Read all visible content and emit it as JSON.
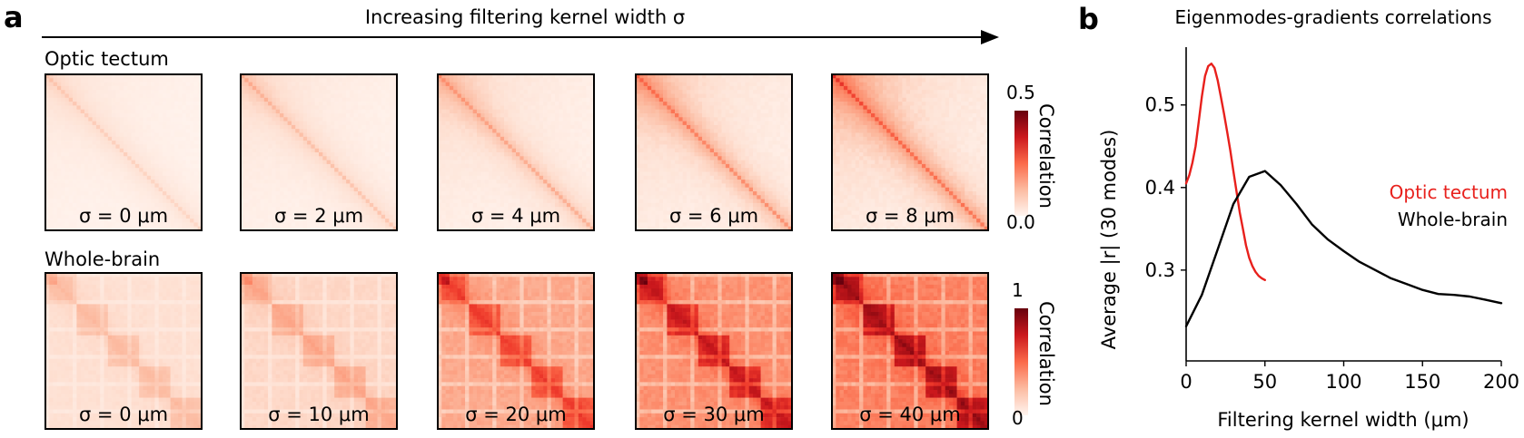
{
  "panel_a": {
    "label": "a",
    "arrow_label": "Increasing filtering kernel width σ",
    "rows": [
      {
        "title": "Optic tectum",
        "colorbar": {
          "max_label": "0.5",
          "min_label": "0.0",
          "label": "Correlation"
        },
        "matrices": [
          {
            "label": "σ = 0 μm",
            "sigma": 0,
            "intensity": 0.18
          },
          {
            "label": "σ = 2 μm",
            "sigma": 2,
            "intensity": 0.24
          },
          {
            "label": "σ = 4 μm",
            "sigma": 4,
            "intensity": 0.32
          },
          {
            "label": "σ = 6 μm",
            "sigma": 6,
            "intensity": 0.42
          },
          {
            "label": "σ = 8 μm",
            "sigma": 8,
            "intensity": 0.52
          }
        ]
      },
      {
        "title": "Whole-brain",
        "colorbar": {
          "max_label": "1",
          "min_label": "0",
          "label": "Correlation"
        },
        "matrices": [
          {
            "label": "σ = 0 μm",
            "sigma": 0,
            "intensity": 0.22
          },
          {
            "label": "σ = 10 μm",
            "sigma": 10,
            "intensity": 0.28
          },
          {
            "label": "σ = 20 μm",
            "sigma": 20,
            "intensity": 0.55
          },
          {
            "label": "σ = 30 μm",
            "sigma": 30,
            "intensity": 0.68
          },
          {
            "label": "σ = 40 μm",
            "sigma": 40,
            "intensity": 0.78
          }
        ]
      }
    ]
  },
  "panel_b": {
    "label": "b",
    "title": "Eigenmodes-gradients correlations"
  },
  "colors": {
    "optic_tectum": "#e8201c",
    "whole_brain": "#000000",
    "heat_low": "#fff5f0",
    "heat_high": "#67000d"
  },
  "chart_data": [
    {
      "type": "heatmap",
      "title": "Optic tectum",
      "colorbar_label": "Correlation",
      "color_range": [
        0.0,
        0.5
      ],
      "panels": [
        "σ = 0 μm",
        "σ = 2 μm",
        "σ = 4 μm",
        "σ = 6 μm",
        "σ = 8 μm"
      ]
    },
    {
      "type": "heatmap",
      "title": "Whole-brain",
      "colorbar_label": "Correlation",
      "color_range": [
        0,
        1
      ],
      "panels": [
        "σ = 0 μm",
        "σ = 10 μm",
        "σ = 20 μm",
        "σ = 30 μm",
        "σ = 40 μm"
      ]
    },
    {
      "type": "line",
      "title": "Eigenmodes-gradients correlations",
      "xlabel": "Filtering kernel width (μm)",
      "ylabel": "Average |r| (30 modes)",
      "xlim": [
        0,
        200
      ],
      "ylim": [
        0.19,
        0.57
      ],
      "xticks": [
        0,
        50,
        100,
        150,
        200
      ],
      "yticks": [
        0.3,
        0.4,
        0.5
      ],
      "legend_position": "right",
      "series": [
        {
          "name": "Optic tectum",
          "color": "#e8201c",
          "x": [
            0,
            2,
            4,
            6,
            8,
            10,
            12,
            14,
            16,
            18,
            20,
            22,
            24,
            26,
            28,
            30,
            32,
            34,
            36,
            38,
            40,
            42,
            44,
            46,
            48,
            50
          ],
          "y": [
            0.405,
            0.415,
            0.43,
            0.45,
            0.48,
            0.51,
            0.535,
            0.547,
            0.55,
            0.545,
            0.53,
            0.51,
            0.49,
            0.468,
            0.445,
            0.42,
            0.395,
            0.37,
            0.35,
            0.33,
            0.315,
            0.305,
            0.298,
            0.293,
            0.29,
            0.288
          ]
        },
        {
          "name": "Whole-brain",
          "color": "#000000",
          "x": [
            0,
            10,
            20,
            30,
            40,
            50,
            60,
            70,
            80,
            90,
            100,
            110,
            120,
            130,
            140,
            150,
            160,
            170,
            180,
            190,
            200
          ],
          "y": [
            0.232,
            0.27,
            0.325,
            0.38,
            0.413,
            0.42,
            0.403,
            0.38,
            0.355,
            0.337,
            0.323,
            0.31,
            0.3,
            0.29,
            0.283,
            0.276,
            0.271,
            0.27,
            0.268,
            0.264,
            0.26
          ]
        }
      ]
    }
  ]
}
